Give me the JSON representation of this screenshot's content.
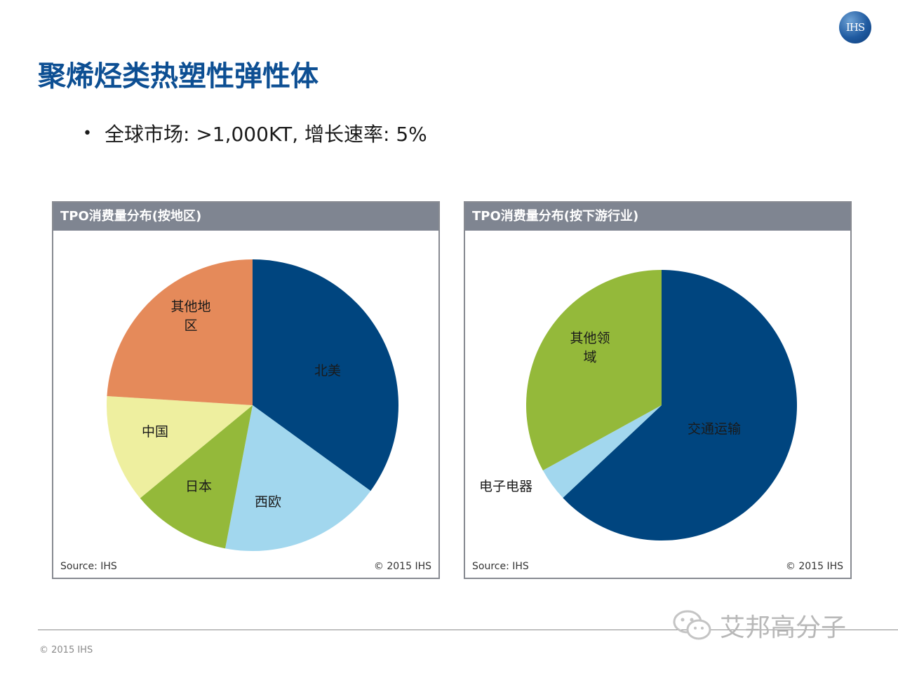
{
  "logo_text": "IHS",
  "title": "聚烯烃类热塑性弹性体",
  "bullet": "全球市场: >1,000KT, 增长速率: 5%",
  "watermark": "艾邦高分子",
  "footer_copy": "© 2015 IHS",
  "colors": {
    "title": "#0d4f93",
    "header": "#7f8591",
    "dark_blue": "#00457f",
    "light_blue": "#a2d7ee",
    "green": "#94b93a",
    "pale_yellow": "#eeef9f",
    "orange": "#e58a5a"
  },
  "chart_data": [
    {
      "type": "pie",
      "title": "TPO消费量分布(按地区)",
      "source": "Source: IHS",
      "copyright": "© 2015 IHS",
      "categories": [
        "北美",
        "西欧",
        "日本",
        "中国",
        "其他地区"
      ],
      "label_lines": [
        [
          "北美"
        ],
        [
          "西欧"
        ],
        [
          "日本"
        ],
        [
          "中国"
        ],
        [
          "其他地",
          "区"
        ]
      ],
      "values": [
        35,
        18,
        11,
        12,
        24
      ],
      "colors": [
        "#00457f",
        "#a2d7ee",
        "#94b93a",
        "#eeef9f",
        "#e58a5a"
      ]
    },
    {
      "type": "pie",
      "title": "TPO消费量分布(按下游行业)",
      "source": "Source: IHS",
      "copyright": "© 2015 IHS",
      "categories": [
        "交通运输",
        "电子电器",
        "其他领域"
      ],
      "label_lines": [
        [
          "交通运输"
        ],
        [
          "电子电器"
        ],
        [
          "其他领",
          "域"
        ]
      ],
      "values": [
        63,
        4,
        33
      ],
      "colors": [
        "#00457f",
        "#a2d7ee",
        "#94b93a"
      ]
    }
  ]
}
